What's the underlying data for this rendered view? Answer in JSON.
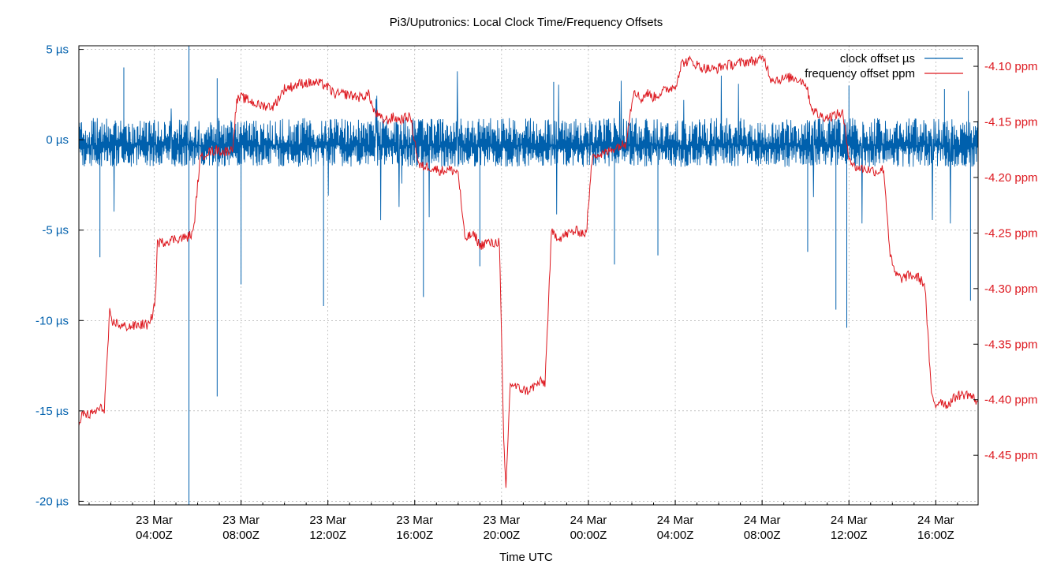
{
  "chart_data": {
    "type": "line",
    "title": "Pi3/Uputronics: Local Clock Time/Frequency Offsets",
    "xlabel": "Time UTC",
    "ylabel": "",
    "grid": true,
    "legend_position": "top-right",
    "colors": {
      "clock": "#0060ad",
      "freq": "#dd181f",
      "grid": "#a0a0a0",
      "axis": "#000000"
    },
    "x_unit": "hours since 23 Mar 00:00Z",
    "xlim": [
      0.53,
      41.95
    ],
    "x_ticks": [
      {
        "value": 4,
        "line1": "23 Mar",
        "line2": "04:00Z"
      },
      {
        "value": 8,
        "line1": "23 Mar",
        "line2": "08:00Z"
      },
      {
        "value": 12,
        "line1": "23 Mar",
        "line2": "12:00Z"
      },
      {
        "value": 16,
        "line1": "23 Mar",
        "line2": "16:00Z"
      },
      {
        "value": 20,
        "line1": "23 Mar",
        "line2": "20:00Z"
      },
      {
        "value": 24,
        "line1": "24 Mar",
        "line2": "00:00Z"
      },
      {
        "value": 28,
        "line1": "24 Mar",
        "line2": "04:00Z"
      },
      {
        "value": 32,
        "line1": "24 Mar",
        "line2": "08:00Z"
      },
      {
        "value": 36,
        "line1": "24 Mar",
        "line2": "12:00Z"
      },
      {
        "value": 40,
        "line1": "24 Mar",
        "line2": "16:00Z"
      }
    ],
    "y_left": {
      "unit": "µs",
      "ylim": [
        -20.2,
        5.2
      ],
      "ticks": [
        {
          "value": 5,
          "label": "5 µs"
        },
        {
          "value": 0,
          "label": "0 µs"
        },
        {
          "value": -5,
          "label": "-5 µs"
        },
        {
          "value": -10,
          "label": "-10 µs"
        },
        {
          "value": -15,
          "label": "-15 µs"
        },
        {
          "value": -20,
          "label": "-20 µs"
        }
      ]
    },
    "y_right": {
      "unit": "ppm",
      "ylim": [
        -4.4946,
        -4.0815
      ],
      "ticks": [
        {
          "value": -4.1,
          "label": "-4.10 ppm"
        },
        {
          "value": -4.15,
          "label": "-4.15 ppm"
        },
        {
          "value": -4.2,
          "label": "-4.20 ppm"
        },
        {
          "value": -4.25,
          "label": "-4.25 ppm"
        },
        {
          "value": -4.3,
          "label": "-4.30 ppm"
        },
        {
          "value": -4.35,
          "label": "-4.35 ppm"
        },
        {
          "value": -4.4,
          "label": "-4.40 ppm"
        },
        {
          "value": -4.45,
          "label": "-4.45 ppm"
        }
      ]
    },
    "series": [
      {
        "name": "clock offset µs",
        "axis": "left",
        "color": "#0060ad",
        "style": "noise band about a baseline",
        "baseline": -0.3,
        "band": [
          -1.5,
          1.2
        ],
        "spikes": [
          {
            "x": 5.6,
            "y": 5.2
          },
          {
            "x": 5.6,
            "y": -20.2
          },
          {
            "x": 6.9,
            "y": 3.4
          },
          {
            "x": 6.9,
            "y": -14.2
          },
          {
            "x": 2.6,
            "y": 4.0
          },
          {
            "x": 1.5,
            "y": -6.5
          },
          {
            "x": 8.0,
            "y": -8.0
          },
          {
            "x": 11.8,
            "y": -9.2
          },
          {
            "x": 16.4,
            "y": -8.7
          },
          {
            "x": 19.0,
            "y": -7.0
          },
          {
            "x": 22.4,
            "y": 3.2
          },
          {
            "x": 25.2,
            "y": -6.9
          },
          {
            "x": 27.2,
            "y": -6.4
          },
          {
            "x": 34.1,
            "y": -6.2
          },
          {
            "x": 35.4,
            "y": -9.4
          },
          {
            "x": 35.9,
            "y": -10.4
          },
          {
            "x": 36.0,
            "y": 3.0
          },
          {
            "x": 41.6,
            "y": -8.9
          },
          {
            "x": 40.4,
            "y": 2.8
          },
          {
            "x": 41.5,
            "y": 2.7
          }
        ]
      },
      {
        "name": "frequency offset ppm",
        "axis": "right",
        "color": "#dd181f",
        "x": [
          0.53,
          0.7,
          1.0,
          1.5,
          1.7,
          1.95,
          2.05,
          2.2,
          2.5,
          3.0,
          3.5,
          3.8,
          4.05,
          4.15,
          4.3,
          4.6,
          5.0,
          5.5,
          5.8,
          6.1,
          6.4,
          6.6,
          6.9,
          7.2,
          7.6,
          7.8,
          8.0,
          8.3,
          8.8,
          9.5,
          10.0,
          10.4,
          10.8,
          11.5,
          11.9,
          12.3,
          12.8,
          13.5,
          13.9,
          14.1,
          14.5,
          14.8,
          15.0,
          15.3,
          15.8,
          16.2,
          16.6,
          16.9,
          17.2,
          17.6,
          18.0,
          18.3,
          18.6,
          18.8,
          19.0,
          19.3,
          19.6,
          19.9,
          20.1,
          20.2,
          20.4,
          20.8,
          21.2,
          21.5,
          21.8,
          22.0,
          22.3,
          22.7,
          23.1,
          23.5,
          23.9,
          24.2,
          24.5,
          24.9,
          25.3,
          25.7,
          26.1,
          26.4,
          26.7,
          27.0,
          27.4,
          27.7,
          28.0,
          28.3,
          28.7,
          29.2,
          29.8,
          30.3,
          30.8,
          31.2,
          31.7,
          32.1,
          32.4,
          32.8,
          33.3,
          33.6,
          34.0,
          34.3,
          34.6,
          35.0,
          35.3,
          35.7,
          36.0,
          36.2,
          36.6,
          37.0,
          37.3,
          37.6,
          37.9,
          38.1,
          38.4,
          38.8,
          39.2,
          39.5,
          39.8,
          40.0,
          40.2,
          40.5,
          41.0,
          41.5,
          41.95
        ],
        "values": [
          -4.426,
          -4.412,
          -4.414,
          -4.408,
          -4.408,
          -4.322,
          -4.332,
          -4.33,
          -4.334,
          -4.334,
          -4.332,
          -4.333,
          -4.31,
          -4.258,
          -4.259,
          -4.257,
          -4.255,
          -4.254,
          -4.25,
          -4.185,
          -4.177,
          -4.177,
          -4.175,
          -4.177,
          -4.175,
          -4.131,
          -4.128,
          -4.13,
          -4.135,
          -4.136,
          -4.12,
          -4.118,
          -4.115,
          -4.115,
          -4.117,
          -4.125,
          -4.125,
          -4.128,
          -4.125,
          -4.14,
          -4.148,
          -4.148,
          -4.146,
          -4.148,
          -4.145,
          -4.19,
          -4.19,
          -4.192,
          -4.194,
          -4.193,
          -4.195,
          -4.255,
          -4.252,
          -4.253,
          -4.262,
          -4.258,
          -4.26,
          -4.257,
          -4.44,
          -4.48,
          -4.385,
          -4.39,
          -4.392,
          -4.388,
          -4.384,
          -4.385,
          -4.25,
          -4.254,
          -4.25,
          -4.248,
          -4.251,
          -4.177,
          -4.18,
          -4.177,
          -4.172,
          -4.17,
          -4.12,
          -4.13,
          -4.124,
          -4.128,
          -4.123,
          -4.12,
          -4.118,
          -4.097,
          -4.095,
          -4.101,
          -4.103,
          -4.099,
          -4.098,
          -4.096,
          -4.095,
          -4.093,
          -4.111,
          -4.112,
          -4.11,
          -4.111,
          -4.115,
          -4.138,
          -4.144,
          -4.146,
          -4.144,
          -4.142,
          -4.18,
          -4.19,
          -4.192,
          -4.193,
          -4.195,
          -4.192,
          -4.27,
          -4.286,
          -4.291,
          -4.288,
          -4.29,
          -4.297,
          -4.396,
          -4.405,
          -4.4,
          -4.405,
          -4.396,
          -4.395,
          -4.402
        ]
      }
    ]
  }
}
